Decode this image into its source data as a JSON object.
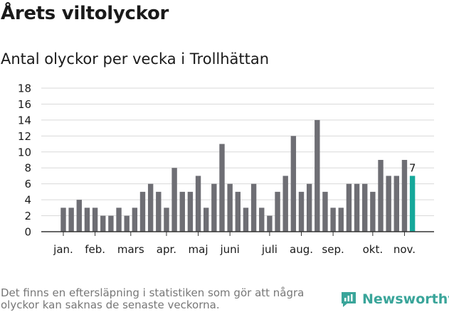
{
  "header": {
    "title": "Årets viltolyckor",
    "subtitle": "Antal olyckor per vecka i Trollhättan"
  },
  "footer": {
    "note": "Det finns en eftersläpning i statistiken som gör att några olyckor kan saknas de senaste veckorna.",
    "brand": "Newsworthy",
    "brand_icon": "newsworthy-logo-icon"
  },
  "colors": {
    "bar": "#6e6e74",
    "highlight": "#16a89a",
    "grid": "#d9d9d9",
    "axis": "#333333",
    "brand": "#3aa59a"
  },
  "chart_data": {
    "type": "bar",
    "title": "Antal olyckor per vecka i Trollhättan",
    "xlabel": "",
    "ylabel": "",
    "ylim": [
      0,
      18
    ],
    "yticks": [
      0,
      2,
      4,
      6,
      8,
      10,
      12,
      14,
      16,
      18
    ],
    "grid": true,
    "weeks": [
      1,
      2,
      3,
      4,
      5,
      6,
      7,
      8,
      9,
      10,
      11,
      12,
      13,
      14,
      15,
      16,
      17,
      18,
      19,
      20,
      21,
      22,
      23,
      24,
      25,
      26,
      27,
      28,
      29,
      30,
      31,
      32,
      33,
      34,
      35,
      36,
      37,
      38,
      39,
      40,
      41,
      42,
      43,
      44,
      45
    ],
    "values": [
      3,
      3,
      4,
      3,
      3,
      2,
      2,
      3,
      2,
      3,
      5,
      6,
      5,
      3,
      8,
      5,
      5,
      7,
      3,
      6,
      11,
      6,
      5,
      3,
      6,
      3,
      2,
      5,
      7,
      12,
      5,
      6,
      14,
      5,
      3,
      3,
      6,
      6,
      6,
      5,
      9,
      7,
      7,
      9,
      7
    ],
    "highlight_last": true,
    "value_label": "7",
    "month_labels": [
      {
        "label": "jan.",
        "week": 1
      },
      {
        "label": "feb.",
        "week": 5
      },
      {
        "label": "mars",
        "week": 9.5
      },
      {
        "label": "apr.",
        "week": 14
      },
      {
        "label": "maj",
        "week": 18
      },
      {
        "label": "juni",
        "week": 22
      },
      {
        "label": "juli",
        "week": 27
      },
      {
        "label": "aug.",
        "week": 31
      },
      {
        "label": "sep.",
        "week": 35
      },
      {
        "label": "okt.",
        "week": 40
      },
      {
        "label": "nov.",
        "week": 44
      }
    ]
  }
}
